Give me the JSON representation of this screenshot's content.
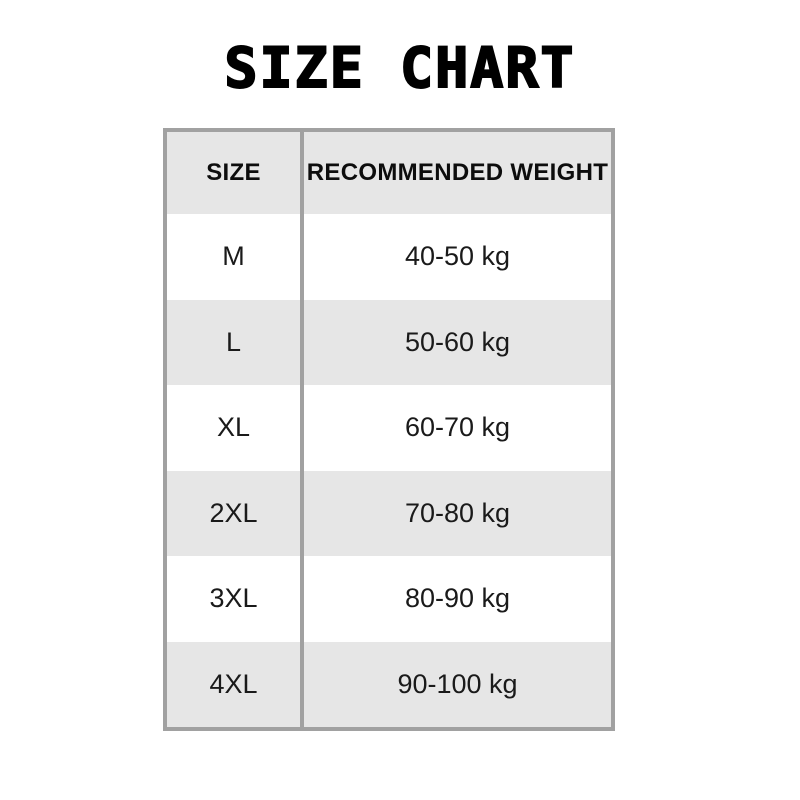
{
  "title": "SIZE CHART",
  "table": {
    "headers": {
      "size": "SIZE",
      "weight": "RECOMMENDED WEIGHT"
    },
    "rows": [
      {
        "size": "M",
        "weight": "40-50 kg"
      },
      {
        "size": "L",
        "weight": "50-60 kg"
      },
      {
        "size": "XL",
        "weight": "60-70 kg"
      },
      {
        "size": "2XL",
        "weight": "70-80 kg"
      },
      {
        "size": "3XL",
        "weight": "80-90 kg"
      },
      {
        "size": "4XL",
        "weight": "90-100 kg"
      }
    ]
  },
  "colors": {
    "page_background": "#ffffff",
    "table_border": "#a1a1a1",
    "row_alternate": "#e6e6e6",
    "row_white": "#ffffff",
    "text": "#111111"
  },
  "chart_data": {
    "type": "table",
    "title": "SIZE CHART",
    "columns": [
      "SIZE",
      "RECOMMENDED WEIGHT"
    ],
    "rows": [
      [
        "M",
        "40-50 kg"
      ],
      [
        "L",
        "50-60 kg"
      ],
      [
        "XL",
        "60-70 kg"
      ],
      [
        "2XL",
        "70-80 kg"
      ],
      [
        "3XL",
        "80-90 kg"
      ],
      [
        "4XL",
        "90-100 kg"
      ]
    ],
    "layout_hints": {
      "alternating_row_shading": true,
      "header_background": "#e6e6e6",
      "grid": "outer border + single column divider only",
      "text_alignment": "center"
    }
  }
}
